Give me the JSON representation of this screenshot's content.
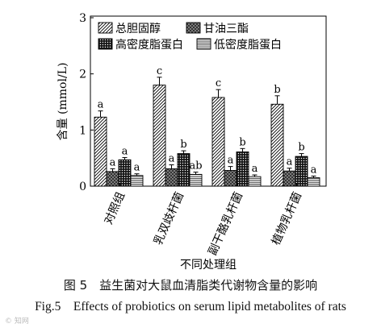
{
  "chart_data": {
    "type": "bar",
    "ylabel": "含量 (mmol/L)",
    "xlabel": "不同处理组",
    "ylim": [
      0,
      3
    ],
    "yticks": [
      0,
      1,
      2,
      3
    ],
    "categories": [
      "对照组",
      "乳双歧杆菌",
      "副干酪乳杆菌",
      "植物乳杆菌"
    ],
    "legend_position": "top-inside",
    "series": [
      {
        "name": "总胆固醇",
        "pattern": "diagonal",
        "values": [
          1.23,
          1.8,
          1.58,
          1.46
        ],
        "errors": [
          0.11,
          0.14,
          0.14,
          0.15
        ],
        "labels": [
          "a",
          "c",
          "c",
          "b"
        ]
      },
      {
        "name": "甘油三酯",
        "pattern": "dark-cross",
        "values": [
          0.26,
          0.31,
          0.28,
          0.27
        ],
        "errors": [
          0.05,
          0.07,
          0.07,
          0.05
        ],
        "labels": [
          "a",
          "a",
          "a",
          "a"
        ]
      },
      {
        "name": "高密度脂蛋白",
        "pattern": "grid",
        "values": [
          0.47,
          0.58,
          0.61,
          0.53
        ],
        "errors": [
          0.04,
          0.05,
          0.06,
          0.05
        ],
        "labels": [
          "a",
          "b",
          "b",
          "b"
        ]
      },
      {
        "name": "低密度脂蛋白",
        "pattern": "horizontal",
        "values": [
          0.19,
          0.21,
          0.17,
          0.15
        ],
        "errors": [
          0.03,
          0.04,
          0.03,
          0.03
        ],
        "labels": [
          "a",
          "ab",
          "a",
          "a"
        ]
      }
    ]
  },
  "caption_cn": "图 5　益生菌对大鼠血清脂类代谢物含量的影响",
  "caption_en": "Fig.5　Effects of probiotics on serum lipid metabolites of rats",
  "watermark": "© 知网"
}
